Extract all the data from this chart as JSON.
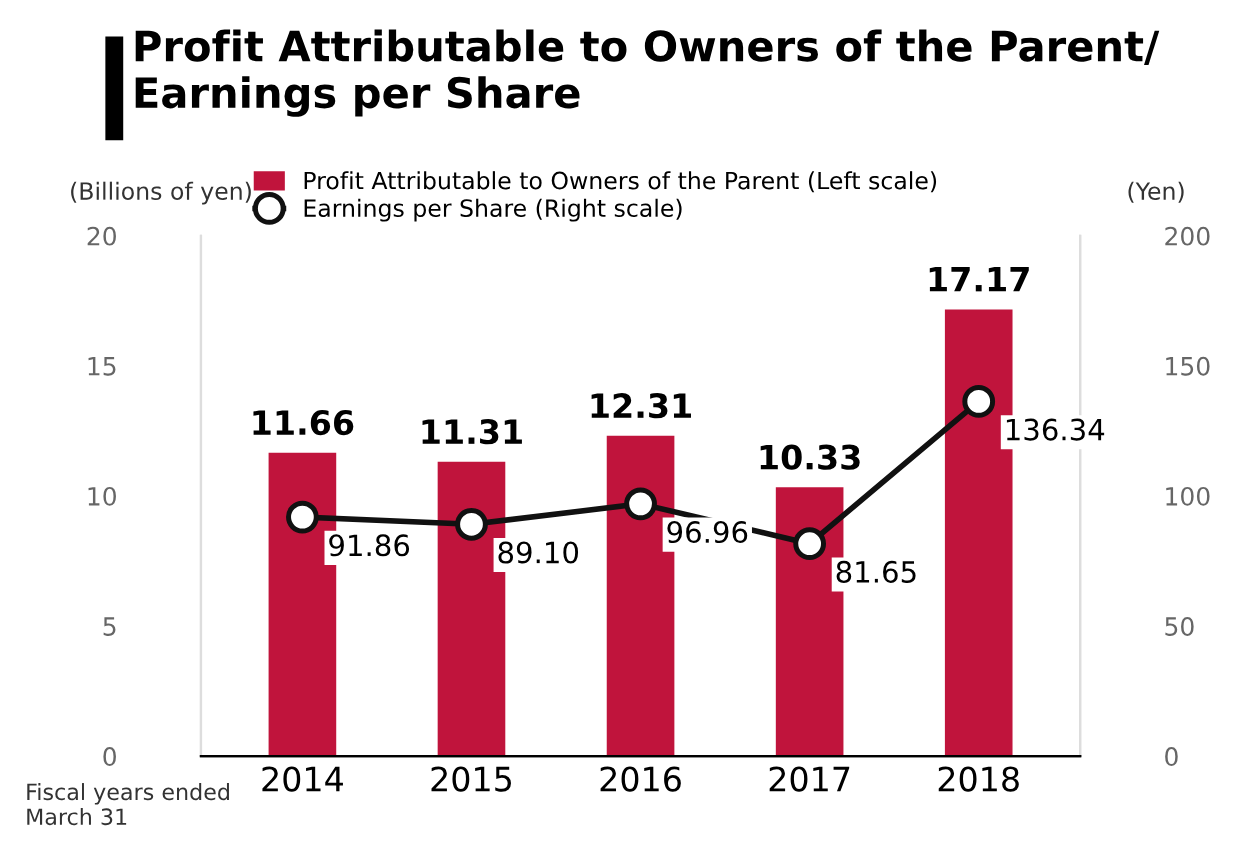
{
  "chart_data": {
    "type": "bar",
    "title": "Profit Attributable to Owners of the Parent/\nEarnings per Share",
    "categories": [
      "2014",
      "2015",
      "2016",
      "2017",
      "2018"
    ],
    "series": [
      {
        "name": "Profit Attributable to Owners of the Parent (Left scale)",
        "color": "#c0143c",
        "values": [
          11.66,
          11.31,
          12.31,
          10.33,
          17.17
        ]
      },
      {
        "name": "Earnings per Share (Right scale)",
        "type": "line",
        "axis": "y2",
        "color": "#111111",
        "marker": "circle",
        "values": [
          91.86,
          89.1,
          96.96,
          81.65,
          136.34
        ],
        "value_labels": [
          "91.86",
          "89.10",
          "96.96",
          "81.65",
          "136.34"
        ]
      }
    ],
    "ylabel": "(Billions of yen)",
    "y2label": "(Yen)",
    "ylim": [
      0,
      20
    ],
    "yticks": [
      0,
      5,
      10,
      15,
      20
    ],
    "y2lim": [
      0,
      200
    ],
    "y2ticks": [
      0,
      50,
      100,
      150,
      200
    ],
    "data_labels": true,
    "grid": false,
    "legend": "top",
    "annotations": [
      "Fiscal years ended\nMarch 31"
    ]
  }
}
